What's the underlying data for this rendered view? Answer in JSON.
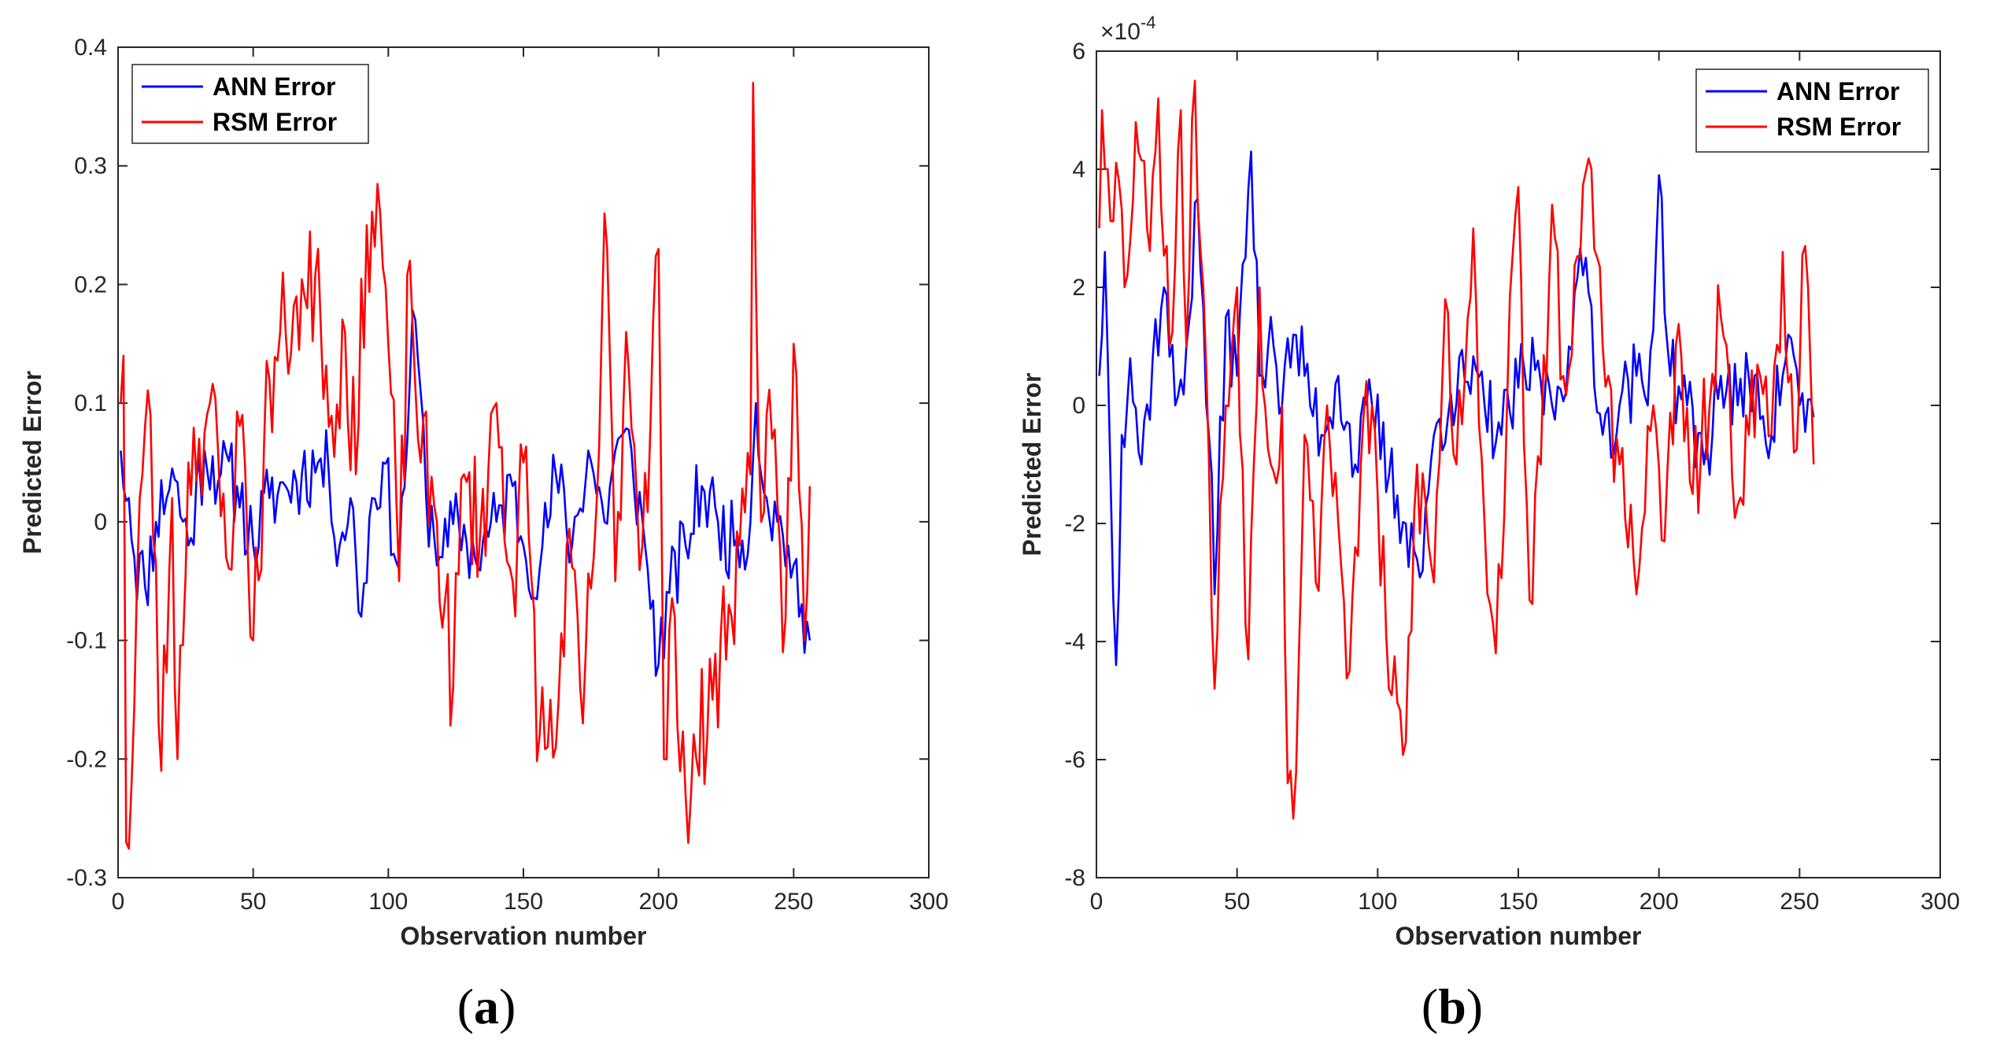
{
  "chart_data": [
    {
      "panel": "a",
      "type": "line",
      "caption_open": "(",
      "caption_letter": "a",
      "caption_close": ")",
      "xlabel": "Observation number",
      "ylabel": "Predicted Error",
      "exponent_label": "",
      "xlim": [
        0,
        300
      ],
      "ylim": [
        -0.3,
        0.4
      ],
      "xticks": [
        0,
        50,
        100,
        150,
        200,
        250,
        300
      ],
      "xtick_labels": [
        "0",
        "50",
        "100",
        "150",
        "200",
        "250",
        "300"
      ],
      "yticks": [
        -0.3,
        -0.2,
        -0.1,
        0,
        0.1,
        0.2,
        0.3,
        0.4
      ],
      "ytick_labels": [
        "-0.3",
        "-0.2",
        "-0.1",
        "0",
        "0.1",
        "0.2",
        "0.3",
        "0.4"
      ],
      "legend_position": "top-left",
      "x_start": 1,
      "x_end": 256,
      "series": [
        {
          "name": "ANN Error",
          "color": "#0000ff",
          "anchors": [
            [
              1,
              0.06
            ],
            [
              4,
              0.02
            ],
            [
              6,
              -0.03
            ],
            [
              10,
              -0.055
            ],
            [
              14,
              0.0
            ],
            [
              20,
              0.045
            ],
            [
              26,
              -0.02
            ],
            [
              32,
              0.06
            ],
            [
              38,
              0.04
            ],
            [
              44,
              0.03
            ],
            [
              50,
              -0.02
            ],
            [
              56,
              0.02
            ],
            [
              62,
              0.03
            ],
            [
              68,
              0.04
            ],
            [
              74,
              0.05
            ],
            [
              78,
              0.04
            ],
            [
              82,
              -0.02
            ],
            [
              86,
              0.02
            ],
            [
              90,
              -0.08
            ],
            [
              94,
              0.02
            ],
            [
              98,
              0.05
            ],
            [
              104,
              -0.04
            ],
            [
              108,
              0.12
            ],
            [
              110,
              0.17
            ],
            [
              114,
              0.02
            ],
            [
              120,
              -0.03
            ],
            [
              126,
              0.0
            ],
            [
              132,
              -0.03
            ],
            [
              140,
              0.0
            ],
            [
              146,
              0.03
            ],
            [
              150,
              -0.02
            ],
            [
              156,
              -0.04
            ],
            [
              162,
              0.04
            ],
            [
              168,
              -0.02
            ],
            [
              174,
              0.06
            ],
            [
              180,
              0.0
            ],
            [
              184,
              0.06
            ],
            [
              190,
              0.06
            ],
            [
              196,
              -0.04
            ],
            [
              200,
              -0.12
            ],
            [
              204,
              -0.06
            ],
            [
              210,
              -0.02
            ],
            [
              216,
              0.03
            ],
            [
              222,
              0.0
            ],
            [
              228,
              -0.02
            ],
            [
              234,
              0.0
            ],
            [
              236,
              0.1
            ],
            [
              240,
              0.02
            ],
            [
              244,
              0.0
            ],
            [
              248,
              -0.02
            ],
            [
              252,
              -0.08
            ],
            [
              256,
              -0.1
            ]
          ],
          "jitter": 0.035,
          "seed": 11
        },
        {
          "name": "RSM Error",
          "color": "#ff0000",
          "anchors": [
            [
              1,
              0.1
            ],
            [
              2,
              0.14
            ],
            [
              3,
              -0.27
            ],
            [
              5,
              -0.22
            ],
            [
              8,
              0.02
            ],
            [
              12,
              0.09
            ],
            [
              16,
              -0.21
            ],
            [
              20,
              0.02
            ],
            [
              22,
              -0.2
            ],
            [
              26,
              0.05
            ],
            [
              30,
              0.07
            ],
            [
              34,
              0.1
            ],
            [
              40,
              -0.03
            ],
            [
              46,
              0.09
            ],
            [
              50,
              -0.1
            ],
            [
              56,
              0.12
            ],
            [
              62,
              0.16
            ],
            [
              66,
              0.19
            ],
            [
              70,
              0.18
            ],
            [
              74,
              0.23
            ],
            [
              78,
              0.08
            ],
            [
              84,
              0.16
            ],
            [
              88,
              0.04
            ],
            [
              92,
              0.25
            ],
            [
              97,
              0.26
            ],
            [
              100,
              0.15
            ],
            [
              104,
              -0.05
            ],
            [
              108,
              0.22
            ],
            [
              112,
              0.05
            ],
            [
              118,
              0.0
            ],
            [
              124,
              -0.14
            ],
            [
              128,
              0.04
            ],
            [
              134,
              -0.01
            ],
            [
              140,
              0.1
            ],
            [
              146,
              -0.05
            ],
            [
              150,
              0.05
            ],
            [
              156,
              -0.18
            ],
            [
              162,
              -0.19
            ],
            [
              166,
              -0.02
            ],
            [
              172,
              -0.17
            ],
            [
              178,
              0.06
            ],
            [
              180,
              0.26
            ],
            [
              184,
              -0.05
            ],
            [
              188,
              0.16
            ],
            [
              194,
              -0.02
            ],
            [
              200,
              0.23
            ],
            [
              202,
              -0.2
            ],
            [
              206,
              -0.08
            ],
            [
              210,
              -0.23
            ],
            [
              214,
              -0.2
            ],
            [
              220,
              -0.15
            ],
            [
              226,
              -0.07
            ],
            [
              230,
              -0.02
            ],
            [
              234,
              0.04
            ],
            [
              235,
              0.37
            ],
            [
              238,
              0.0
            ],
            [
              242,
              0.07
            ],
            [
              246,
              -0.11
            ],
            [
              250,
              0.15
            ],
            [
              254,
              -0.1
            ],
            [
              256,
              0.03
            ]
          ],
          "jitter": 0.06,
          "seed": 23
        }
      ]
    },
    {
      "panel": "b",
      "type": "line",
      "caption_open": "(",
      "caption_letter": "b",
      "caption_close": ")",
      "xlabel": "Observation number",
      "ylabel": "Predicted Error",
      "exponent_label": "×10",
      "exponent_power": "-4",
      "xlim": [
        0,
        300
      ],
      "ylim": [
        -8,
        6
      ],
      "xticks": [
        0,
        50,
        100,
        150,
        200,
        250,
        300
      ],
      "xtick_labels": [
        "0",
        "50",
        "100",
        "150",
        "200",
        "250",
        "300"
      ],
      "yticks": [
        -8,
        -6,
        -4,
        -2,
        0,
        2,
        4,
        6
      ],
      "ytick_labels": [
        "-8",
        "-6",
        "-4",
        "-2",
        "0",
        "2",
        "4",
        "6"
      ],
      "legend_position": "top-right",
      "x_start": 1,
      "x_end": 255,
      "series": [
        {
          "name": "ANN Error",
          "color": "#0000ff",
          "anchors": [
            [
              1,
              0.5
            ],
            [
              3,
              2.6
            ],
            [
              5,
              -1.2
            ],
            [
              7,
              -4.4
            ],
            [
              9,
              -0.5
            ],
            [
              12,
              0.8
            ],
            [
              16,
              -1.0
            ],
            [
              20,
              0.8
            ],
            [
              24,
              2.0
            ],
            [
              28,
              0.0
            ],
            [
              32,
              1.0
            ],
            [
              36,
              3.5
            ],
            [
              40,
              -0.5
            ],
            [
              42,
              -3.2
            ],
            [
              46,
              1.5
            ],
            [
              50,
              0.5
            ],
            [
              55,
              4.3
            ],
            [
              58,
              0.5
            ],
            [
              62,
              1.5
            ],
            [
              66,
              0.0
            ],
            [
              70,
              1.2
            ],
            [
              74,
              0.5
            ],
            [
              80,
              -0.5
            ],
            [
              86,
              0.5
            ],
            [
              92,
              -1.0
            ],
            [
              98,
              0.0
            ],
            [
              104,
              -1.2
            ],
            [
              110,
              -2.0
            ],
            [
              116,
              -2.8
            ],
            [
              120,
              -0.5
            ],
            [
              126,
              0.2
            ],
            [
              132,
              0.4
            ],
            [
              138,
              0.0
            ],
            [
              144,
              -0.5
            ],
            [
              150,
              0.3
            ],
            [
              156,
              0.6
            ],
            [
              162,
              0.0
            ],
            [
              168,
              1.0
            ],
            [
              174,
              2.5
            ],
            [
              180,
              -0.5
            ],
            [
              186,
              0.0
            ],
            [
              192,
              0.5
            ],
            [
              196,
              0.0
            ],
            [
              200,
              3.9
            ],
            [
              204,
              0.5
            ],
            [
              210,
              0.0
            ],
            [
              216,
              -1.0
            ],
            [
              222,
              0.5
            ],
            [
              228,
              0.0
            ],
            [
              234,
              0.5
            ],
            [
              240,
              -0.5
            ],
            [
              246,
              1.2
            ],
            [
              250,
              0.0
            ],
            [
              255,
              -0.2
            ]
          ],
          "jitter": 0.7,
          "seed": 37
        },
        {
          "name": "RSM Error",
          "color": "#ff0000",
          "anchors": [
            [
              1,
              3.0
            ],
            [
              2,
              5.0
            ],
            [
              4,
              4.0
            ],
            [
              8,
              3.8
            ],
            [
              10,
              2.0
            ],
            [
              14,
              4.8
            ],
            [
              18,
              3.0
            ],
            [
              22,
              5.2
            ],
            [
              26,
              1.0
            ],
            [
              30,
              5.0
            ],
            [
              32,
              1.0
            ],
            [
              35,
              5.5
            ],
            [
              38,
              2.0
            ],
            [
              42,
              -4.8
            ],
            [
              46,
              0.0
            ],
            [
              50,
              2.0
            ],
            [
              54,
              -4.3
            ],
            [
              58,
              2.0
            ],
            [
              62,
              -1.0
            ],
            [
              66,
              0.0
            ],
            [
              68,
              -6.4
            ],
            [
              70,
              -7.0
            ],
            [
              74,
              -0.5
            ],
            [
              78,
              -3.0
            ],
            [
              82,
              0.0
            ],
            [
              86,
              -2.0
            ],
            [
              90,
              -4.5
            ],
            [
              94,
              -1.0
            ],
            [
              98,
              0.0
            ],
            [
              104,
              -4.8
            ],
            [
              110,
              -5.7
            ],
            [
              114,
              -1.0
            ],
            [
              120,
              -3.0
            ],
            [
              124,
              1.8
            ],
            [
              128,
              -1.0
            ],
            [
              134,
              3.0
            ],
            [
              138,
              -2.0
            ],
            [
              142,
              -4.2
            ],
            [
              146,
              0.0
            ],
            [
              150,
              3.7
            ],
            [
              154,
              -3.3
            ],
            [
              158,
              -1.0
            ],
            [
              162,
              3.4
            ],
            [
              166,
              0.5
            ],
            [
              172,
              2.5
            ],
            [
              176,
              4.0
            ],
            [
              180,
              1.0
            ],
            [
              186,
              -1.0
            ],
            [
              192,
              -3.2
            ],
            [
              198,
              0.0
            ],
            [
              202,
              -2.3
            ],
            [
              206,
              1.0
            ],
            [
              212,
              -1.5
            ],
            [
              218,
              0.0
            ],
            [
              222,
              1.5
            ],
            [
              226,
              -1.2
            ],
            [
              232,
              -0.5
            ],
            [
              236,
              0.5
            ],
            [
              240,
              -0.5
            ],
            [
              244,
              2.6
            ],
            [
              248,
              -0.8
            ],
            [
              252,
              2.7
            ],
            [
              255,
              -1.0
            ]
          ],
          "jitter": 1.0,
          "seed": 53
        }
      ]
    }
  ]
}
